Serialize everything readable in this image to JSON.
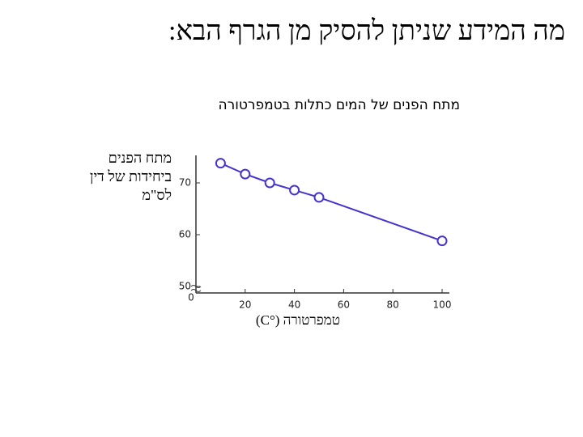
{
  "slide_title": "מה המידע שניתן להסיק מן הגרף הבא:",
  "chart_data": {
    "type": "line",
    "title": "מתח הפנים של המים כתלות בטמפרטורה",
    "ylabel": [
      "מתח הפנים",
      "ביחידות של דין",
      "לס\"מ"
    ],
    "xlabel": "טמפרטורה (°C)",
    "x": [
      10,
      20,
      30,
      40,
      50,
      100
    ],
    "series": [
      {
        "color": "#4433cc",
        "values": [
          73.8,
          71.7,
          70,
          68.6,
          67.2,
          58.8
        ]
      }
    ],
    "xlim": [
      0,
      100
    ],
    "xticks": [
      0,
      20,
      40,
      60,
      80,
      100
    ],
    "ylim": [
      48.75,
      75
    ],
    "yticks": [
      50,
      60,
      70
    ]
  }
}
